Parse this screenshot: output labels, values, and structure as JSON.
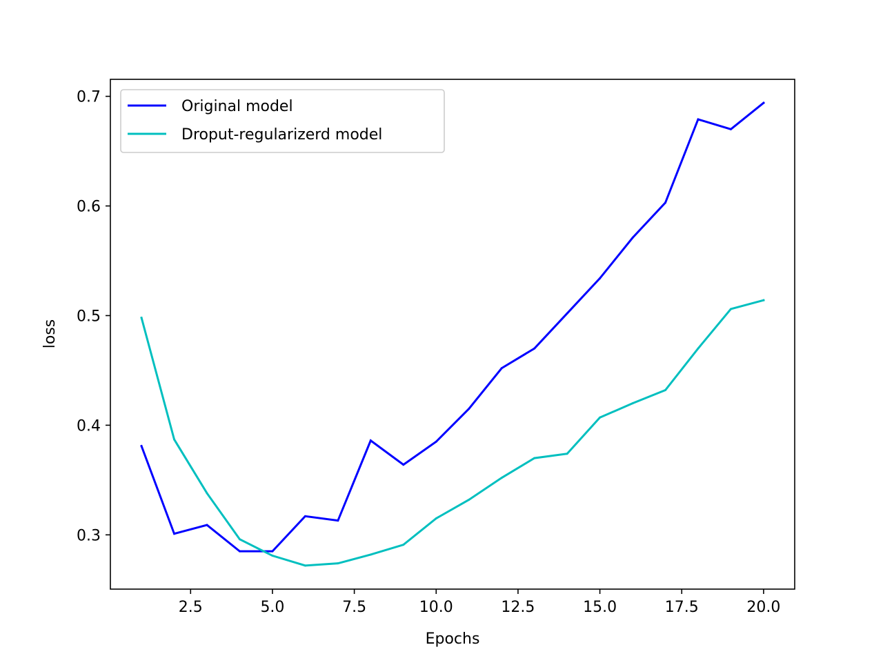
{
  "chart_data": {
    "type": "line",
    "title": "",
    "xlabel": "Epochs",
    "ylabel": "loss",
    "xlim": [
      0.05,
      20.95
    ],
    "ylim": [
      0.2505,
      0.7155
    ],
    "xticks": [
      2.5,
      5.0,
      7.5,
      10.0,
      12.5,
      15.0,
      17.5,
      20.0
    ],
    "xtick_labels": [
      "2.5",
      "5.0",
      "7.5",
      "10.0",
      "12.5",
      "15.0",
      "17.5",
      "20.0"
    ],
    "yticks": [
      0.3,
      0.4,
      0.5,
      0.6,
      0.7
    ],
    "ytick_labels": [
      "0.3",
      "0.4",
      "0.5",
      "0.6",
      "0.7"
    ],
    "grid": false,
    "legend_position": "top-left",
    "x": [
      1,
      2,
      3,
      4,
      5,
      6,
      7,
      8,
      9,
      10,
      11,
      12,
      13,
      14,
      15,
      16,
      17,
      18,
      19,
      20
    ],
    "series": [
      {
        "name": "Original model",
        "color": "#0000ff",
        "values": [
          0.381,
          0.301,
          0.309,
          0.285,
          0.285,
          0.317,
          0.313,
          0.386,
          0.364,
          0.385,
          0.415,
          0.452,
          0.47,
          0.502,
          0.534,
          0.571,
          0.603,
          0.679,
          0.67,
          0.694
        ]
      },
      {
        "name": "Droput-regularizerd model",
        "color": "#00bfbf",
        "values": [
          0.498,
          0.387,
          0.338,
          0.296,
          0.281,
          0.272,
          0.274,
          0.282,
          0.291,
          0.315,
          0.332,
          0.352,
          0.37,
          0.374,
          0.407,
          0.42,
          0.432,
          0.47,
          0.506,
          0.514
        ]
      }
    ]
  }
}
